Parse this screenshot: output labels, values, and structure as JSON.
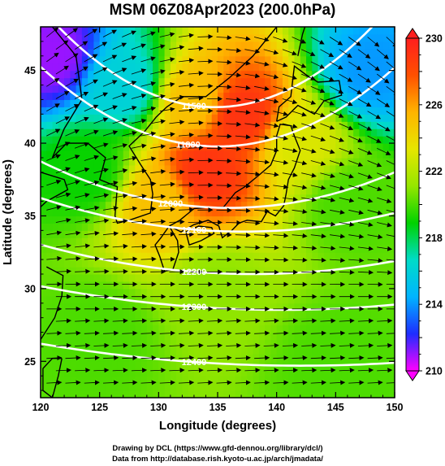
{
  "chart_data": {
    "type": "heatmap",
    "title": "MSM 06Z08Apr2023 (200.0hPa)",
    "xlabel": "Longitude (degrees)",
    "ylabel": "Latitude  (degrees)",
    "xlim": [
      120,
      150
    ],
    "ylim": [
      22.5,
      48
    ],
    "xticks": [
      "120",
      "125",
      "130",
      "135",
      "140",
      "145",
      "150"
    ],
    "yticks": [
      "25",
      "30",
      "35",
      "40",
      "45"
    ],
    "colorbar": {
      "min": 210,
      "max": 230,
      "ticks": [
        "210",
        "214",
        "218",
        "222",
        "226",
        "230"
      ],
      "colors": [
        "#ff00ff",
        "#1e2dff",
        "#00b4ff",
        "#00dcc8",
        "#00d200",
        "#96e600",
        "#e6e600",
        "#ffb400",
        "#ff5000",
        "#ff1e1e"
      ],
      "extend": "both"
    },
    "contour_labels": [
      "11500",
      "11800",
      "12000",
      "12100",
      "12200",
      "12300",
      "12400"
    ],
    "contour_values": [
      11500,
      11800,
      12000,
      12100,
      12200,
      12300,
      12400
    ],
    "field_samples": [
      {
        "lon": 121,
        "lat": 46,
        "value": 211
      },
      {
        "lon": 127,
        "lat": 44,
        "value": 216
      },
      {
        "lon": 133,
        "lat": 43,
        "value": 225
      },
      {
        "lon": 137,
        "lat": 42,
        "value": 229
      },
      {
        "lon": 134,
        "lat": 38,
        "value": 229
      },
      {
        "lon": 130,
        "lat": 36,
        "value": 225
      },
      {
        "lon": 124,
        "lat": 38,
        "value": 219
      },
      {
        "lon": 142,
        "lat": 40,
        "value": 223
      },
      {
        "lon": 148,
        "lat": 45,
        "value": 214
      },
      {
        "lon": 146,
        "lat": 36,
        "value": 220
      },
      {
        "lon": 135,
        "lat": 30,
        "value": 221
      },
      {
        "lon": 125,
        "lat": 27,
        "value": 220
      },
      {
        "lon": 145,
        "lat": 25,
        "value": 220
      }
    ]
  },
  "credits": {
    "line1": "Drawing by DCL (https://www.gfd-dennou.org/library/dcl/)",
    "line2": "Data from http://database.rish.kyoto-u.ac.jp/arch/jmadata/"
  }
}
